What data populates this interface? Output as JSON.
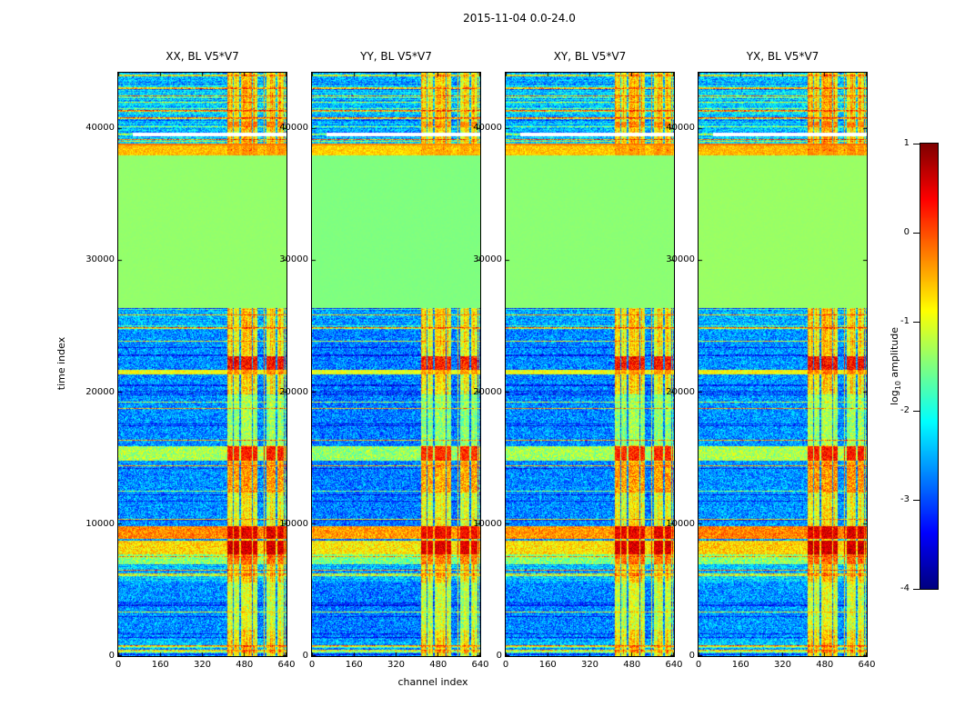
{
  "chart_data": {
    "type": "heatmap",
    "suptitle": "2015-11-04 0.0-24.0",
    "xlabel": "channel index",
    "ylabel": "time index",
    "x_range": [
      0,
      640
    ],
    "y_range": [
      0,
      44200
    ],
    "x_ticks": [
      0,
      160,
      320,
      480,
      640
    ],
    "y_ticks": [
      0,
      10000,
      20000,
      30000,
      40000
    ],
    "panels": [
      {
        "title": "XX, BL V5*V7"
      },
      {
        "title": "YY, BL V5*V7"
      },
      {
        "title": "XY, BL V5*V7"
      },
      {
        "title": "YX, BL V5*V7"
      }
    ],
    "colorbar": {
      "label_prefix": "log",
      "label_sub": "10",
      "label_suffix": " amplitude",
      "colormap": "jet",
      "range": [
        -4,
        1
      ],
      "ticks": [
        1,
        0,
        -1,
        -2,
        -3,
        -4
      ]
    },
    "features": {
      "background": {
        "base": -3.3,
        "noise": 1.15
      },
      "rfi_channel_bands": [
        [
          416,
          530
        ],
        [
          552,
          636
        ]
      ],
      "band_default": {
        "base": -1.7,
        "strength_gain": 1.15,
        "noise": 0.5
      },
      "band_envelope": [
        {
          "time": [
            2000,
            5600
          ],
          "gain": 0.65
        },
        {
          "time": [
            10000,
            12400
          ],
          "gain": 0.85
        },
        {
          "time": [
            16000,
            19800
          ],
          "gain": 0.35
        }
      ],
      "line_clusters": [
        {
          "time": [
            0,
            1300
          ],
          "prob": 0.2,
          "boost": 0.35
        },
        {
          "time": [
            5600,
            6900
          ],
          "prob": 0.22,
          "boost": 0.5
        },
        {
          "time": [
            24700,
            26350
          ],
          "prob": 0.16,
          "boost": 0.3
        },
        {
          "time": [
            38850,
            44200
          ],
          "prob": 0.2,
          "boost": 0.55
        }
      ],
      "time_bands": [
        {
          "time": [
            26400,
            37950
          ],
          "full": -1.45,
          "fnoise": 0.03,
          "flat": true
        },
        {
          "time": [
            37950,
            38850
          ],
          "full": -0.6,
          "fnoise": 0.3,
          "band": -0.45,
          "bnoise": 0.3
        },
        {
          "time": [
            38700,
            38850
          ],
          "full": -0.25,
          "fnoise": 0.15
        },
        {
          "time": [
            8900,
            9850
          ],
          "full": -0.35,
          "fnoise": 0.45,
          "band": 0.45,
          "bnoise": 0.4
        },
        {
          "time": [
            7700,
            8760
          ],
          "full": -0.75,
          "fnoise": 0.5,
          "band": 0.55,
          "bnoise": 0.35
        },
        {
          "time": [
            6950,
            7700
          ],
          "full": -1.5,
          "fnoise": 0.6,
          "band": -0.2,
          "bnoise": 0.5
        },
        {
          "time": [
            14800,
            15900
          ],
          "full": -1.35,
          "fnoise": 0.5,
          "band": 0.2,
          "bnoise": 0.4
        },
        {
          "time": [
            12400,
            14700
          ],
          "band": -0.45,
          "bnoise": 0.55
        },
        {
          "time": [
            21350,
            21700
          ],
          "full": -0.95,
          "fnoise": 0.35,
          "band": -0.4,
          "bnoise": 0.4
        },
        {
          "time": [
            21700,
            22750
          ],
          "band": 0.25,
          "bnoise": 0.5
        },
        {
          "time": [
            40100,
            40500
          ],
          "band": -0.3,
          "bnoise": 0.4
        }
      ],
      "masked_rows": [
        {
          "time": [
            39350,
            39650
          ],
          "channels": [
            56,
            640
          ]
        }
      ]
    }
  }
}
